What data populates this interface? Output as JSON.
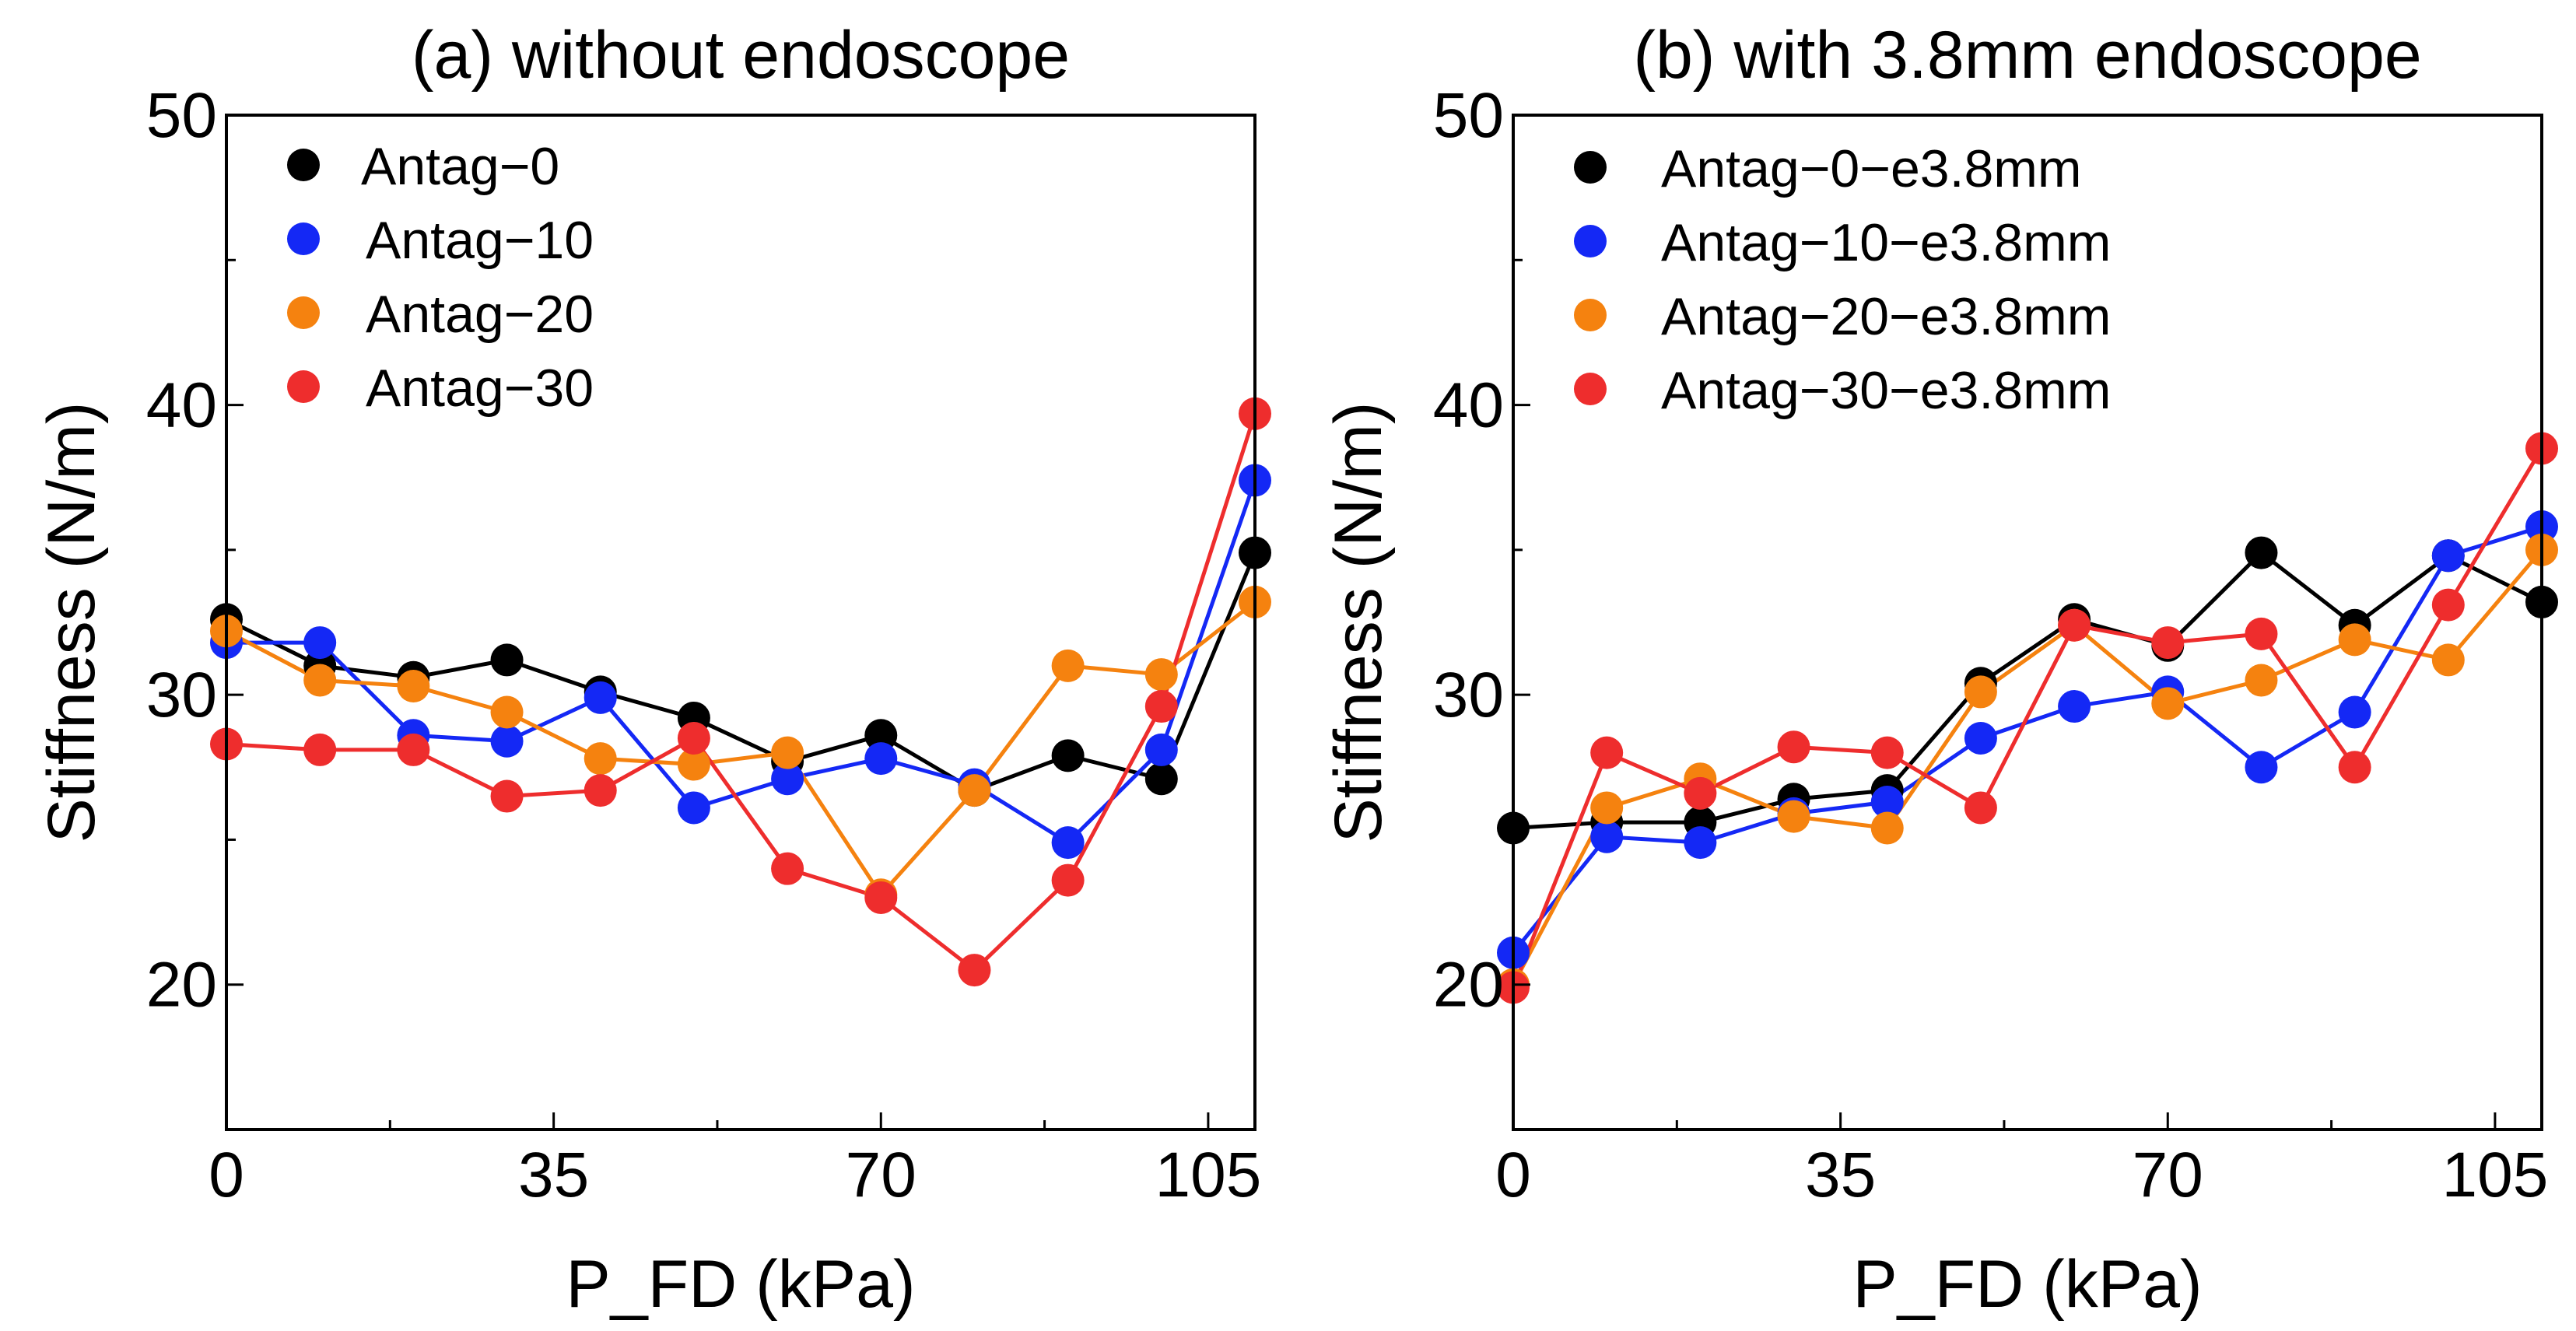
{
  "chart_data": [
    {
      "type": "line",
      "title": "(a) without endoscope",
      "xlabel": "P_FD (kPa)",
      "ylabel": "Stiffness (N/m)",
      "xlim": [
        0,
        110
      ],
      "ylim": [
        15,
        50
      ],
      "x_ticks": [
        0,
        35,
        70,
        105
      ],
      "x_tick_labels": [
        "0",
        "35",
        "70",
        "105"
      ],
      "y_ticks": [
        20,
        30,
        40,
        50
      ],
      "y_tick_labels": [
        "20",
        "30",
        "40",
        "50"
      ],
      "grid": false,
      "legend_position": "top-left",
      "x": [
        0,
        10,
        20,
        30,
        40,
        50,
        60,
        70,
        80,
        90,
        100,
        110
      ],
      "series": [
        {
          "name": "Antag−0",
          "color": "#000000",
          "values": [
            32.6,
            31.0,
            30.6,
            31.2,
            30.1,
            29.2,
            27.7,
            28.6,
            26.7,
            27.9,
            27.1,
            34.9
          ]
        },
        {
          "name": "Antag−10",
          "color": "#1428f5",
          "values": [
            31.8,
            31.8,
            28.6,
            28.4,
            29.9,
            26.1,
            27.1,
            27.8,
            26.9,
            24.9,
            28.1,
            37.4
          ]
        },
        {
          "name": "Antag−20",
          "color": "#f5820f",
          "values": [
            32.2,
            30.5,
            30.3,
            29.4,
            27.8,
            27.6,
            28.0,
            23.1,
            26.7,
            31.0,
            30.7,
            33.2
          ]
        },
        {
          "name": "Antag−30",
          "color": "#ee2d2d",
          "values": [
            28.3,
            28.1,
            28.1,
            26.5,
            26.7,
            28.5,
            24.0,
            23.0,
            20.5,
            23.6,
            29.6,
            39.7
          ]
        }
      ]
    },
    {
      "type": "line",
      "title": "(b) with 3.8mm endoscope",
      "xlabel": "P_FD (kPa)",
      "ylabel": "Stiffness (N/m)",
      "xlim": [
        0,
        110
      ],
      "ylim": [
        15,
        50
      ],
      "x_ticks": [
        0,
        35,
        70,
        105
      ],
      "x_tick_labels": [
        "0",
        "35",
        "70",
        "105"
      ],
      "y_ticks": [
        20,
        30,
        40,
        50
      ],
      "y_tick_labels": [
        "20",
        "30",
        "40",
        "50"
      ],
      "grid": false,
      "legend_position": "top-left",
      "x": [
        0,
        10,
        20,
        30,
        40,
        50,
        60,
        70,
        80,
        90,
        100,
        110
      ],
      "series": [
        {
          "name": "Antag−0−e3.8mm",
          "color": "#000000",
          "values": [
            25.4,
            25.6,
            25.6,
            26.4,
            26.7,
            30.4,
            32.6,
            31.7,
            34.9,
            32.4,
            34.8,
            33.2
          ]
        },
        {
          "name": "Antag−10−e3.8mm",
          "color": "#1428f5",
          "values": [
            21.1,
            25.1,
            24.9,
            25.9,
            26.3,
            28.5,
            29.6,
            30.1,
            27.5,
            29.4,
            34.8,
            35.8
          ]
        },
        {
          "name": "Antag−20−e3.8mm",
          "color": "#f5820f",
          "values": [
            20.0,
            26.1,
            27.1,
            25.8,
            25.4,
            30.1,
            32.4,
            29.7,
            30.5,
            31.9,
            31.2,
            35.0
          ]
        },
        {
          "name": "Antag−30−e3.8mm",
          "color": "#ee2d2d",
          "values": [
            19.9,
            28.0,
            26.6,
            28.2,
            28.0,
            26.1,
            32.4,
            31.8,
            32.1,
            27.5,
            33.1,
            38.5
          ]
        }
      ]
    }
  ]
}
